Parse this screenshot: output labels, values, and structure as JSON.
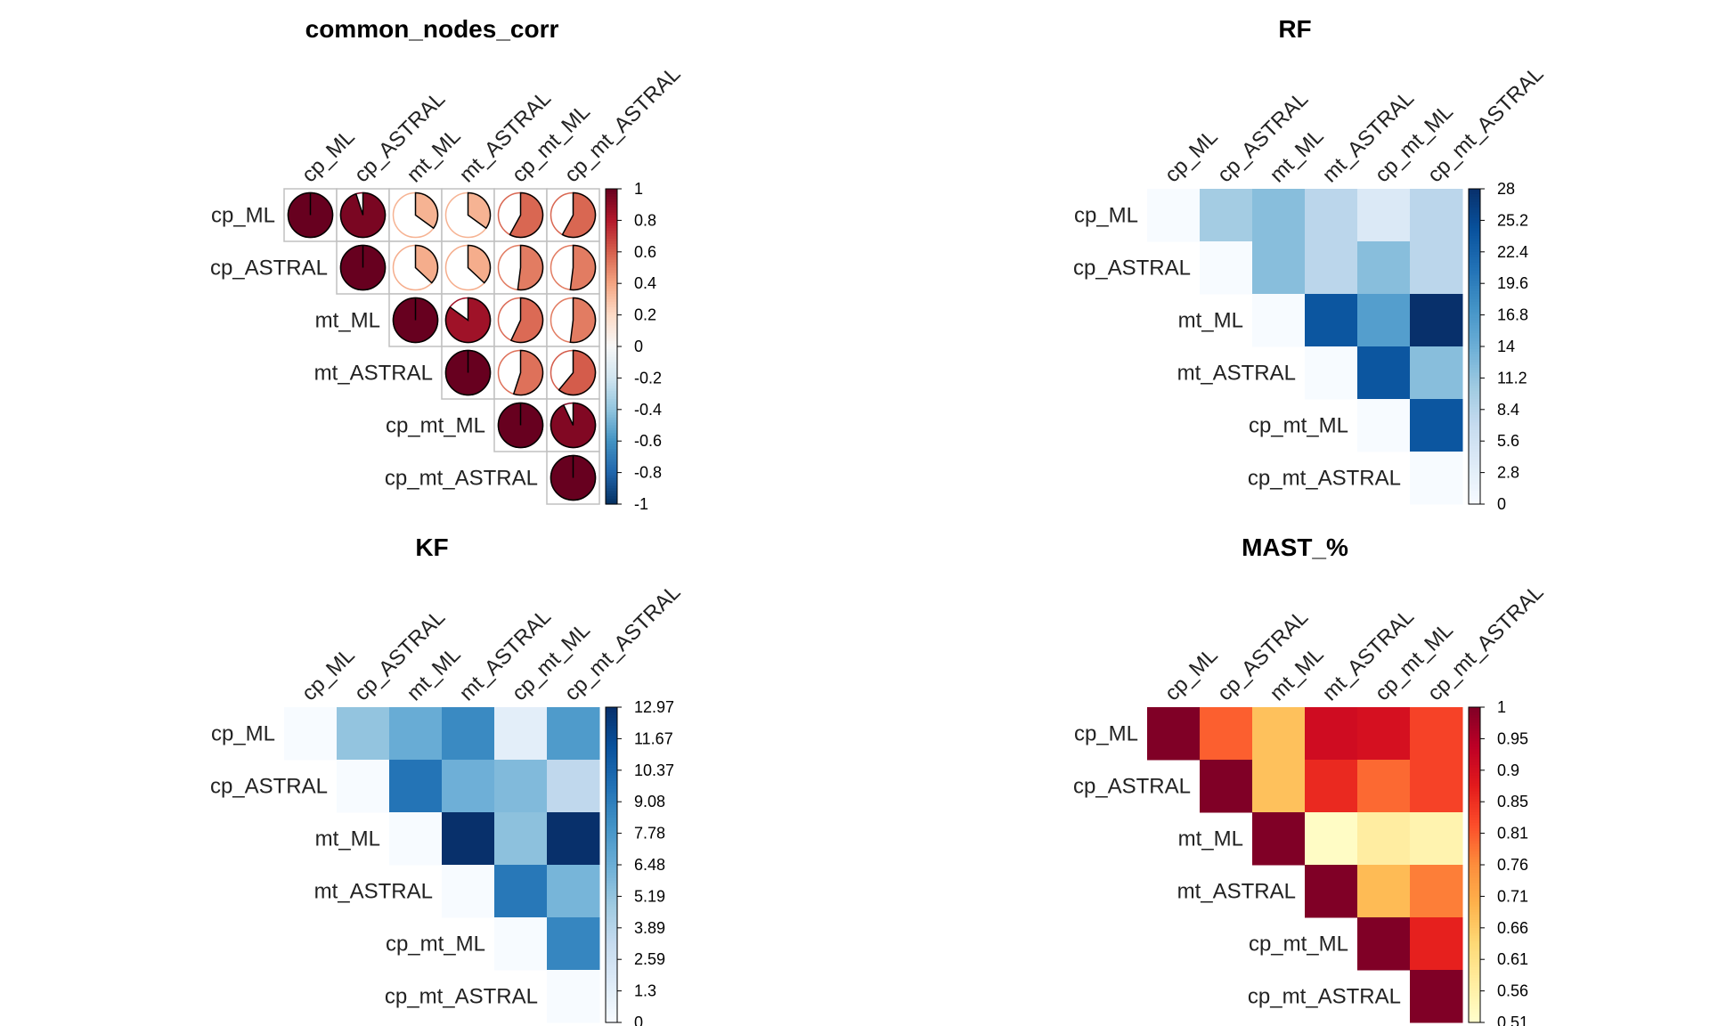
{
  "chart_data": [
    {
      "type": "heatmap",
      "style": "pie",
      "title": "common_nodes_corr",
      "labels": [
        "cp_ML",
        "cp_ASTRAL",
        "mt_ML",
        "mt_ASTRAL",
        "cp_mt_ML",
        "cp_mt_ASTRAL"
      ],
      "values": [
        [
          1,
          0.95,
          0.35,
          0.35,
          0.58,
          0.58
        ],
        [
          null,
          1,
          0.37,
          0.37,
          0.52,
          0.52
        ],
        [
          null,
          null,
          1,
          0.85,
          0.57,
          0.52
        ],
        [
          null,
          null,
          null,
          1,
          0.55,
          0.61
        ],
        [
          null,
          null,
          null,
          null,
          1,
          0.93
        ],
        [
          null,
          null,
          null,
          null,
          null,
          1
        ]
      ],
      "colorbar": {
        "min": -1,
        "max": 1,
        "ticks": [
          "1",
          "0.8",
          "0.6",
          "0.4",
          "0.2",
          "0",
          "-0.2",
          "-0.4",
          "-0.6",
          "-0.8",
          "-1"
        ]
      },
      "palette": [
        "#053061",
        "#2166ac",
        "#4393c3",
        "#92c5de",
        "#d1e5f0",
        "#f7f7f7",
        "#fddbc7",
        "#f4a582",
        "#d6604d",
        "#b2182b",
        "#67001f"
      ]
    },
    {
      "type": "heatmap",
      "style": "square",
      "title": "RF",
      "labels": [
        "cp_ML",
        "cp_ASTRAL",
        "mt_ML",
        "mt_ASTRAL",
        "cp_mt_ML",
        "cp_mt_ASTRAL"
      ],
      "values": [
        [
          0,
          10,
          12,
          8,
          4,
          8
        ],
        [
          null,
          0,
          12,
          8,
          12,
          8
        ],
        [
          null,
          null,
          0,
          24,
          16,
          28
        ],
        [
          null,
          null,
          null,
          0,
          24,
          12
        ],
        [
          null,
          null,
          null,
          null,
          0,
          24
        ],
        [
          null,
          null,
          null,
          null,
          null,
          0
        ]
      ],
      "colorbar": {
        "min": 0,
        "max": 28,
        "ticks": [
          "28",
          "25.2",
          "22.4",
          "19.6",
          "16.8",
          "14",
          "11.2",
          "8.4",
          "5.6",
          "2.8",
          "0"
        ]
      },
      "palette": [
        "#f7fbff",
        "#deebf7",
        "#c6dbef",
        "#9ecae1",
        "#6baed6",
        "#4292c6",
        "#2171b5",
        "#08519c",
        "#08306b"
      ]
    },
    {
      "type": "heatmap",
      "style": "square",
      "title": "KF",
      "labels": [
        "cp_ML",
        "cp_ASTRAL",
        "mt_ML",
        "mt_ASTRAL",
        "cp_mt_ML",
        "cp_mt_ASTRAL"
      ],
      "values": [
        [
          0,
          5.2,
          6.6,
          8.5,
          1.3,
          7.6
        ],
        [
          null,
          0,
          9.6,
          6.4,
          5.8,
          3.5
        ],
        [
          null,
          null,
          0,
          12.97,
          5.4,
          12.97
        ],
        [
          null,
          null,
          null,
          0,
          9.4,
          6.1
        ],
        [
          null,
          null,
          null,
          null,
          0,
          8.7
        ],
        [
          null,
          null,
          null,
          null,
          null,
          0
        ]
      ],
      "colorbar": {
        "min": 0,
        "max": 12.97,
        "ticks": [
          "12.97",
          "11.67",
          "10.37",
          "9.08",
          "7.78",
          "6.48",
          "5.19",
          "3.89",
          "2.59",
          "1.3",
          "0"
        ]
      },
      "palette": [
        "#f7fbff",
        "#deebf7",
        "#c6dbef",
        "#9ecae1",
        "#6baed6",
        "#4292c6",
        "#2171b5",
        "#08519c",
        "#08306b"
      ]
    },
    {
      "type": "heatmap",
      "style": "square",
      "title": "MAST_%",
      "labels": [
        "cp_ML",
        "cp_ASTRAL",
        "mt_ML",
        "mt_ASTRAL",
        "cp_mt_ML",
        "cp_mt_ASTRAL"
      ],
      "values": [
        [
          1,
          0.8,
          0.67,
          0.91,
          0.9,
          0.83
        ],
        [
          null,
          1,
          0.67,
          0.86,
          0.79,
          0.83
        ],
        [
          null,
          null,
          1,
          0.52,
          0.57,
          0.55
        ],
        [
          null,
          null,
          null,
          1,
          0.68,
          0.77
        ],
        [
          null,
          null,
          null,
          null,
          1,
          0.87
        ],
        [
          null,
          null,
          null,
          null,
          null,
          1
        ]
      ],
      "colorbar": {
        "min": 0.51,
        "max": 1,
        "ticks": [
          "1",
          "0.95",
          "0.9",
          "0.85",
          "0.81",
          "0.76",
          "0.71",
          "0.66",
          "0.61",
          "0.56",
          "0.51"
        ]
      },
      "palette": [
        "#ffffcc",
        "#ffeda0",
        "#fed976",
        "#feb24c",
        "#fd8d3c",
        "#fc4e2a",
        "#e31a1c",
        "#bd0026",
        "#800026"
      ]
    }
  ]
}
